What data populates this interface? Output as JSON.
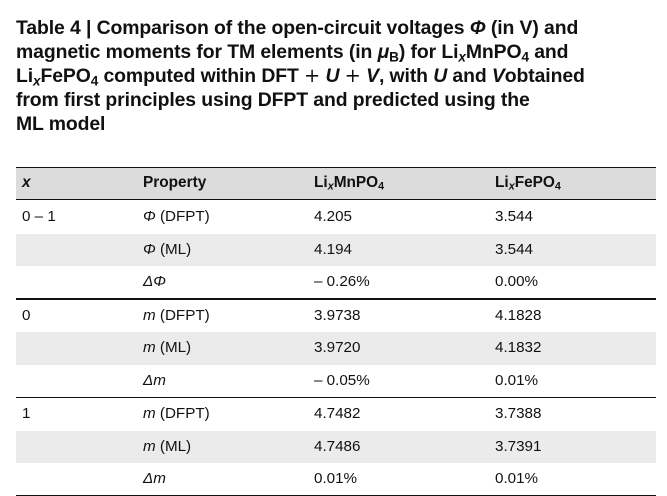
{
  "caption": {
    "table_label": "Table 4",
    "divider": "|",
    "line1": "Comparison of the open-circuit voltages",
    "phi": "Φ",
    "in_v": "(in V) and",
    "line2": "magnetic moments for TM elements (in",
    "mu": "μ",
    "mu_sub": "B",
    "for": ") for",
    "li": "Li",
    "x": "x",
    "mnpo": "MnPO",
    "four": "4",
    "and": "and",
    "fepo": "FePO",
    "computed": "computed within DFT",
    "plus": "+",
    "u": "U",
    "v": "V",
    "with": ", with",
    "and2": "and",
    "obtained": "obtained",
    "line4": "from first principles using DFPT and predicted using the",
    "line5": "ML model"
  },
  "table": {
    "headers": {
      "x": "x",
      "property": "Property",
      "li": "Li",
      "x_sub": "x",
      "mn": "MnPO",
      "fe": "FePO",
      "four": "4"
    },
    "rows": [
      {
        "x": "0 – 1",
        "sym": "Φ",
        "prop": "(DFPT)",
        "mn": "4.205",
        "fe": "3.544"
      },
      {
        "x": "",
        "sym": "Φ",
        "prop": "(ML)",
        "mn": "4.194",
        "fe": "3.544"
      },
      {
        "x": "",
        "sym": "ΔΦ",
        "prop": "",
        "mn": "– 0.26%",
        "fe": "0.00%"
      },
      {
        "x": "0",
        "sym": "m",
        "prop": "(DFPT)",
        "mn": "3.9738",
        "fe": "4.1828"
      },
      {
        "x": "",
        "sym": "m",
        "prop": "(ML)",
        "mn": "3.9720",
        "fe": "4.1832"
      },
      {
        "x": "",
        "sym": "Δm",
        "prop": "",
        "mn": "– 0.05%",
        "fe": "0.01%"
      },
      {
        "x": "1",
        "sym": "m",
        "prop": "(DFPT)",
        "mn": "4.7482",
        "fe": "3.7388"
      },
      {
        "x": "",
        "sym": "m",
        "prop": "(ML)",
        "mn": "4.7486",
        "fe": "3.7391"
      },
      {
        "x": "",
        "sym": "Δm",
        "prop": "",
        "mn": "0.01%",
        "fe": "0.01%"
      }
    ]
  }
}
